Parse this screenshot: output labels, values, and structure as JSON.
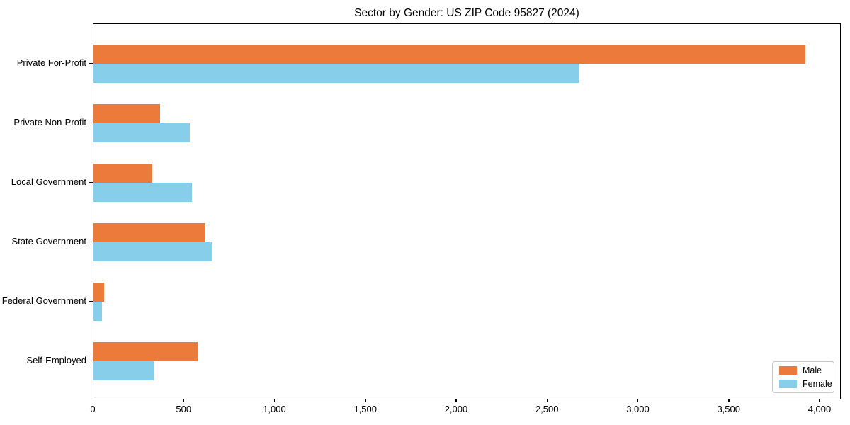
{
  "title": "Sector by Gender: US ZIP Code 95827 (2024)",
  "chart_data": {
    "type": "bar",
    "orientation": "horizontal",
    "title": "Sector by Gender: US ZIP Code 95827 (2024)",
    "categories": [
      "Private For-Profit",
      "Private Non-Profit",
      "Local Government",
      "State Government",
      "Federal Government",
      "Self-Employed"
    ],
    "series": [
      {
        "name": "Male",
        "color": "#eb7a3b",
        "values": [
          3920,
          365,
          325,
          615,
          60,
          575
        ]
      },
      {
        "name": "Female",
        "color": "#87ceeb",
        "values": [
          2675,
          530,
          540,
          650,
          45,
          330
        ]
      }
    ],
    "xlabel": "",
    "ylabel": "",
    "xlim": [
      0,
      4117
    ],
    "xticks": [
      {
        "value": 0,
        "label": "0"
      },
      {
        "value": 500,
        "label": "500"
      },
      {
        "value": 1000,
        "label": "1,000"
      },
      {
        "value": 1500,
        "label": "1,500"
      },
      {
        "value": 2000,
        "label": "2,000"
      },
      {
        "value": 2500,
        "label": "2,500"
      },
      {
        "value": 3000,
        "label": "3,000"
      },
      {
        "value": 3500,
        "label": "3,500"
      },
      {
        "value": 4000,
        "label": "4,000"
      }
    ],
    "legend": {
      "position": "lower-right"
    },
    "grid": false,
    "axis_color": "#000000",
    "background": "#ffffff"
  }
}
